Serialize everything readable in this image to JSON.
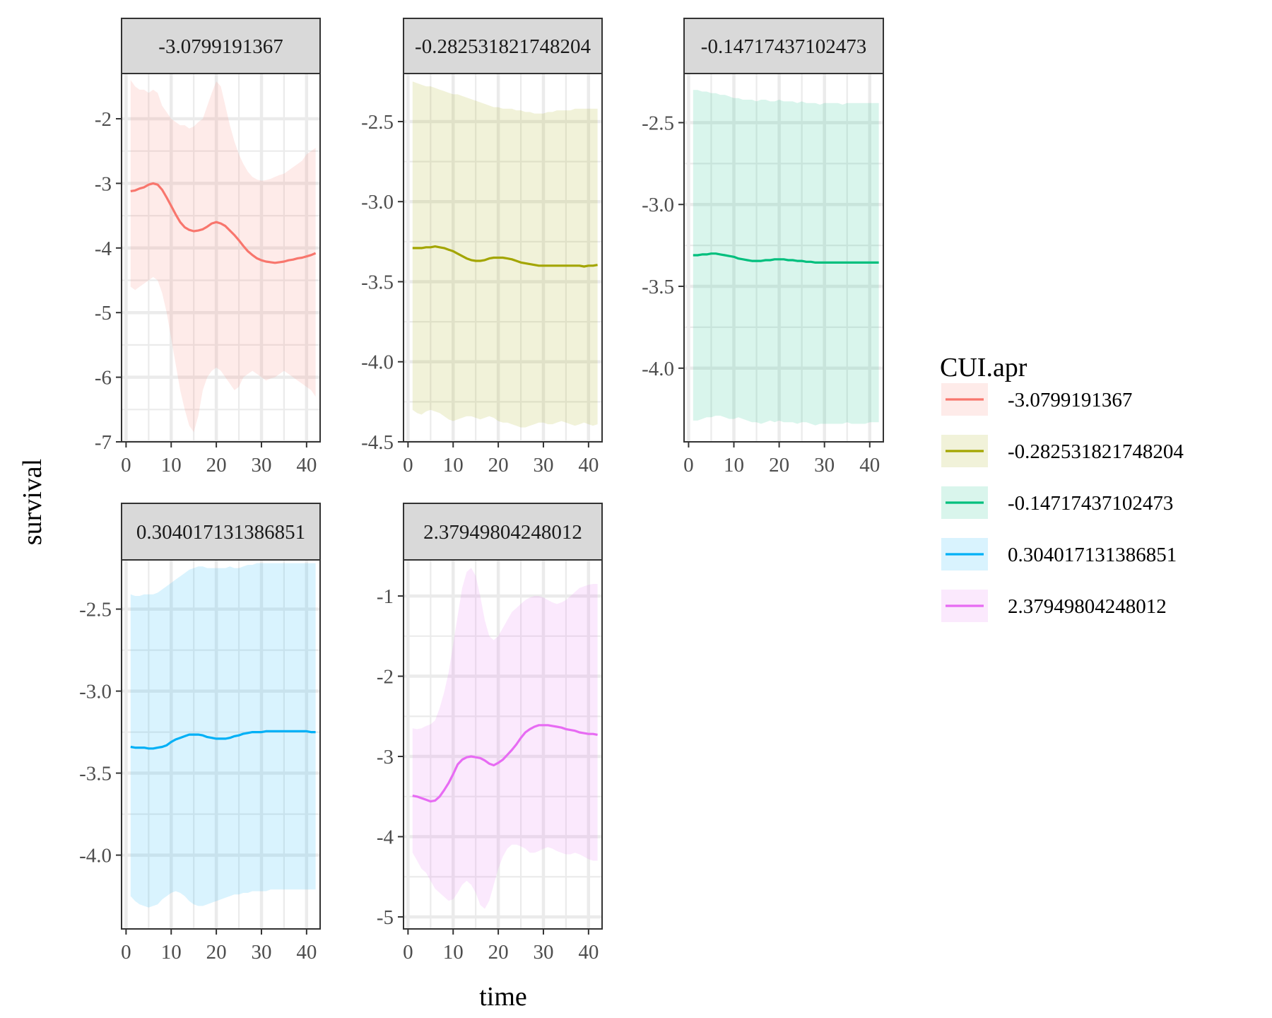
{
  "chart_data": {
    "type": "line",
    "xlabel": "time",
    "ylabel": "survival",
    "legend": {
      "title": "CUI.apr",
      "position": "right"
    },
    "grid": true,
    "ribbon_alpha": 0.15,
    "panels": [
      {
        "strip_label": "-3.0799191367",
        "color": "#F8766D",
        "xlim": [
          -1,
          43
        ],
        "ylim": [
          -7,
          -1.3
        ],
        "x_ticks": [
          0,
          10,
          20,
          30,
          40
        ],
        "y_ticks": [
          -7,
          -6,
          -5,
          -4,
          -3,
          -2
        ],
        "y_tick_labels": [
          "-7",
          "-6",
          "-5",
          "-4",
          "-3",
          "-2"
        ],
        "x": [
          1,
          2,
          3,
          4,
          5,
          6,
          7,
          8,
          9,
          10,
          11,
          12,
          13,
          14,
          15,
          16,
          17,
          18,
          19,
          20,
          21,
          22,
          23,
          24,
          25,
          26,
          27,
          28,
          29,
          30,
          31,
          32,
          33,
          34,
          35,
          36,
          37,
          38,
          39,
          40,
          41,
          42
        ],
        "y": [
          -3.12,
          -3.11,
          -3.08,
          -3.06,
          -3.02,
          -3.0,
          -3.02,
          -3.1,
          -3.22,
          -3.35,
          -3.48,
          -3.6,
          -3.68,
          -3.72,
          -3.74,
          -3.73,
          -3.71,
          -3.67,
          -3.62,
          -3.6,
          -3.62,
          -3.66,
          -3.73,
          -3.8,
          -3.88,
          -3.97,
          -4.05,
          -4.11,
          -4.16,
          -4.19,
          -4.21,
          -4.22,
          -4.23,
          -4.22,
          -4.21,
          -4.19,
          -4.18,
          -4.16,
          -4.15,
          -4.13,
          -4.11,
          -4.08
        ],
        "lower": [
          -4.6,
          -4.65,
          -4.6,
          -4.55,
          -4.5,
          -4.45,
          -4.5,
          -4.7,
          -5.0,
          -5.4,
          -5.8,
          -6.2,
          -6.5,
          -6.75,
          -6.85,
          -6.6,
          -6.2,
          -6.0,
          -5.9,
          -5.85,
          -5.9,
          -6.0,
          -6.1,
          -6.2,
          -6.15,
          -6.0,
          -5.95,
          -5.9,
          -5.95,
          -6.0,
          -6.05,
          -6.02,
          -6.0,
          -5.95,
          -5.9,
          -5.95,
          -6.0,
          -6.05,
          -6.1,
          -6.15,
          -6.2,
          -6.3
        ],
        "upper": [
          -1.4,
          -1.5,
          -1.55,
          -1.55,
          -1.6,
          -1.55,
          -1.6,
          -1.8,
          -1.9,
          -2.0,
          -2.05,
          -2.1,
          -2.1,
          -2.15,
          -2.12,
          -2.05,
          -2.0,
          -1.8,
          -1.6,
          -1.42,
          -1.5,
          -1.8,
          -2.1,
          -2.35,
          -2.55,
          -2.7,
          -2.82,
          -2.9,
          -2.94,
          -2.96,
          -2.95,
          -2.93,
          -2.9,
          -2.87,
          -2.85,
          -2.8,
          -2.75,
          -2.7,
          -2.65,
          -2.55,
          -2.5,
          -2.45
        ]
      },
      {
        "strip_label": "-0.282531821748204",
        "color": "#A3A500",
        "xlim": [
          -1,
          43
        ],
        "ylim": [
          -4.5,
          -2.2
        ],
        "x_ticks": [
          0,
          10,
          20,
          30,
          40
        ],
        "y_ticks": [
          -4.5,
          -4.0,
          -3.5,
          -3.0,
          -2.5
        ],
        "y_tick_labels": [
          "-4.5",
          "-4.0",
          "-3.5",
          "-3.0",
          "-2.5"
        ],
        "x": [
          1,
          2,
          3,
          4,
          5,
          6,
          7,
          8,
          9,
          10,
          11,
          12,
          13,
          14,
          15,
          16,
          17,
          18,
          19,
          20,
          21,
          22,
          23,
          24,
          25,
          26,
          27,
          28,
          29,
          30,
          31,
          32,
          33,
          34,
          35,
          36,
          37,
          38,
          39,
          40,
          41,
          42
        ],
        "y": [
          -3.29,
          -3.29,
          -3.29,
          -3.285,
          -3.285,
          -3.28,
          -3.285,
          -3.29,
          -3.3,
          -3.31,
          -3.325,
          -3.34,
          -3.355,
          -3.365,
          -3.37,
          -3.37,
          -3.365,
          -3.355,
          -3.35,
          -3.35,
          -3.35,
          -3.355,
          -3.36,
          -3.37,
          -3.38,
          -3.385,
          -3.39,
          -3.395,
          -3.4,
          -3.4,
          -3.4,
          -3.4,
          -3.4,
          -3.4,
          -3.4,
          -3.4,
          -3.4,
          -3.4,
          -3.405,
          -3.4,
          -3.4,
          -3.395
        ],
        "lower": [
          -4.3,
          -4.32,
          -4.33,
          -4.31,
          -4.3,
          -4.31,
          -4.32,
          -4.34,
          -4.36,
          -4.37,
          -4.36,
          -4.35,
          -4.34,
          -4.34,
          -4.35,
          -4.36,
          -4.35,
          -4.34,
          -4.35,
          -4.37,
          -4.38,
          -4.38,
          -4.39,
          -4.4,
          -4.41,
          -4.41,
          -4.4,
          -4.39,
          -4.38,
          -4.38,
          -4.39,
          -4.39,
          -4.38,
          -4.37,
          -4.38,
          -4.39,
          -4.4,
          -4.39,
          -4.38,
          -4.39,
          -4.4,
          -4.39
        ],
        "upper": [
          -2.25,
          -2.26,
          -2.27,
          -2.28,
          -2.28,
          -2.29,
          -2.3,
          -2.31,
          -2.32,
          -2.33,
          -2.33,
          -2.34,
          -2.35,
          -2.36,
          -2.37,
          -2.38,
          -2.39,
          -2.4,
          -2.41,
          -2.41,
          -2.42,
          -2.42,
          -2.42,
          -2.43,
          -2.43,
          -2.44,
          -2.44,
          -2.45,
          -2.45,
          -2.45,
          -2.44,
          -2.44,
          -2.43,
          -2.43,
          -2.43,
          -2.43,
          -2.42,
          -2.42,
          -2.42,
          -2.42,
          -2.42,
          -2.42
        ]
      },
      {
        "strip_label": "-0.14717437102473",
        "color": "#00BF7D",
        "xlim": [
          -1,
          43
        ],
        "ylim": [
          -4.45,
          -2.2
        ],
        "x_ticks": [
          0,
          10,
          20,
          30,
          40
        ],
        "y_ticks": [
          -4.0,
          -3.5,
          -3.0,
          -2.5
        ],
        "y_tick_labels": [
          "-4.0",
          "-3.5",
          "-3.0",
          "-2.5"
        ],
        "x": [
          1,
          2,
          3,
          4,
          5,
          6,
          7,
          8,
          9,
          10,
          11,
          12,
          13,
          14,
          15,
          16,
          17,
          18,
          19,
          20,
          21,
          22,
          23,
          24,
          25,
          26,
          27,
          28,
          29,
          30,
          31,
          32,
          33,
          34,
          35,
          36,
          37,
          38,
          39,
          40,
          41,
          42
        ],
        "y": [
          -3.31,
          -3.31,
          -3.305,
          -3.305,
          -3.3,
          -3.3,
          -3.305,
          -3.31,
          -3.315,
          -3.32,
          -3.33,
          -3.335,
          -3.34,
          -3.345,
          -3.345,
          -3.345,
          -3.34,
          -3.34,
          -3.335,
          -3.335,
          -3.335,
          -3.34,
          -3.34,
          -3.345,
          -3.345,
          -3.35,
          -3.35,
          -3.355,
          -3.355,
          -3.355,
          -3.355,
          -3.355,
          -3.355,
          -3.355,
          -3.355,
          -3.355,
          -3.355,
          -3.355,
          -3.355,
          -3.355,
          -3.355,
          -3.355
        ],
        "lower": [
          -4.32,
          -4.32,
          -4.31,
          -4.3,
          -4.3,
          -4.29,
          -4.29,
          -4.3,
          -4.31,
          -4.31,
          -4.3,
          -4.31,
          -4.32,
          -4.33,
          -4.33,
          -4.34,
          -4.33,
          -4.32,
          -4.33,
          -4.32,
          -4.33,
          -4.33,
          -4.33,
          -4.34,
          -4.33,
          -4.33,
          -4.34,
          -4.35,
          -4.34,
          -4.34,
          -4.34,
          -4.34,
          -4.34,
          -4.34,
          -4.33,
          -4.34,
          -4.34,
          -4.34,
          -4.34,
          -4.33,
          -4.33,
          -4.33
        ],
        "upper": [
          -2.3,
          -2.3,
          -2.31,
          -2.31,
          -2.32,
          -2.32,
          -2.33,
          -2.33,
          -2.34,
          -2.35,
          -2.35,
          -2.36,
          -2.36,
          -2.36,
          -2.37,
          -2.36,
          -2.36,
          -2.37,
          -2.37,
          -2.36,
          -2.37,
          -2.37,
          -2.37,
          -2.38,
          -2.37,
          -2.38,
          -2.38,
          -2.38,
          -2.39,
          -2.38,
          -2.38,
          -2.38,
          -2.38,
          -2.39,
          -2.38,
          -2.38,
          -2.38,
          -2.38,
          -2.38,
          -2.38,
          -2.38,
          -2.38
        ]
      },
      {
        "strip_label": "0.304017131386851",
        "color": "#00B0F6",
        "xlim": [
          -1,
          43
        ],
        "ylim": [
          -4.45,
          -2.2
        ],
        "x_ticks": [
          0,
          10,
          20,
          30,
          40
        ],
        "y_ticks": [
          -4.0,
          -3.5,
          -3.0,
          -2.5
        ],
        "y_tick_labels": [
          "-4.0",
          "-3.5",
          "-3.0",
          "-2.5"
        ],
        "x": [
          1,
          2,
          3,
          4,
          5,
          6,
          7,
          8,
          9,
          10,
          11,
          12,
          13,
          14,
          15,
          16,
          17,
          18,
          19,
          20,
          21,
          22,
          23,
          24,
          25,
          26,
          27,
          28,
          29,
          30,
          31,
          32,
          33,
          34,
          35,
          36,
          37,
          38,
          39,
          40,
          41,
          42
        ],
        "y": [
          -3.34,
          -3.345,
          -3.345,
          -3.345,
          -3.35,
          -3.35,
          -3.345,
          -3.34,
          -3.33,
          -3.31,
          -3.295,
          -3.285,
          -3.275,
          -3.265,
          -3.265,
          -3.265,
          -3.27,
          -3.28,
          -3.285,
          -3.29,
          -3.29,
          -3.29,
          -3.285,
          -3.275,
          -3.27,
          -3.26,
          -3.255,
          -3.25,
          -3.25,
          -3.25,
          -3.245,
          -3.245,
          -3.245,
          -3.245,
          -3.245,
          -3.245,
          -3.245,
          -3.245,
          -3.245,
          -3.245,
          -3.25,
          -3.25
        ],
        "lower": [
          -4.25,
          -4.28,
          -4.3,
          -4.31,
          -4.32,
          -4.31,
          -4.3,
          -4.27,
          -4.25,
          -4.23,
          -4.22,
          -4.23,
          -4.25,
          -4.28,
          -4.3,
          -4.31,
          -4.31,
          -4.3,
          -4.29,
          -4.28,
          -4.27,
          -4.26,
          -4.25,
          -4.24,
          -4.24,
          -4.23,
          -4.23,
          -4.22,
          -4.22,
          -4.22,
          -4.22,
          -4.21,
          -4.21,
          -4.21,
          -4.21,
          -4.21,
          -4.21,
          -4.21,
          -4.21,
          -4.21,
          -4.21,
          -4.21
        ],
        "upper": [
          -2.41,
          -2.42,
          -2.42,
          -2.41,
          -2.41,
          -2.41,
          -2.4,
          -2.38,
          -2.36,
          -2.34,
          -2.32,
          -2.3,
          -2.28,
          -2.26,
          -2.25,
          -2.24,
          -2.24,
          -2.25,
          -2.25,
          -2.25,
          -2.25,
          -2.25,
          -2.24,
          -2.25,
          -2.25,
          -2.24,
          -2.23,
          -2.23,
          -2.22,
          -2.22,
          -2.22,
          -2.22,
          -2.22,
          -2.22,
          -2.22,
          -2.22,
          -2.22,
          -2.22,
          -2.22,
          -2.22,
          -2.22,
          -2.22
        ]
      },
      {
        "strip_label": "2.37949804248012",
        "color": "#E76BF3",
        "xlim": [
          -1,
          43
        ],
        "ylim": [
          -5.15,
          -0.55
        ],
        "x_ticks": [
          0,
          10,
          20,
          30,
          40
        ],
        "y_ticks": [
          -5,
          -4,
          -3,
          -2,
          -1
        ],
        "y_tick_labels": [
          "-5",
          "-4",
          "-3",
          "-2",
          "-1"
        ],
        "x": [
          1,
          2,
          3,
          4,
          5,
          6,
          7,
          8,
          9,
          10,
          11,
          12,
          13,
          14,
          15,
          16,
          17,
          18,
          19,
          20,
          21,
          22,
          23,
          24,
          25,
          26,
          27,
          28,
          29,
          30,
          31,
          32,
          33,
          34,
          35,
          36,
          37,
          38,
          39,
          40,
          41,
          42
        ],
        "y": [
          -3.49,
          -3.5,
          -3.52,
          -3.54,
          -3.56,
          -3.55,
          -3.5,
          -3.42,
          -3.33,
          -3.22,
          -3.1,
          -3.04,
          -3.01,
          -3.0,
          -3.01,
          -3.02,
          -3.05,
          -3.09,
          -3.11,
          -3.08,
          -3.04,
          -2.98,
          -2.92,
          -2.85,
          -2.77,
          -2.7,
          -2.66,
          -2.63,
          -2.61,
          -2.61,
          -2.61,
          -2.62,
          -2.63,
          -2.64,
          -2.66,
          -2.67,
          -2.68,
          -2.7,
          -2.71,
          -2.72,
          -2.72,
          -2.73
        ],
        "lower": [
          -4.2,
          -4.3,
          -4.4,
          -4.45,
          -4.55,
          -4.65,
          -4.7,
          -4.75,
          -4.8,
          -4.78,
          -4.7,
          -4.6,
          -4.55,
          -4.6,
          -4.7,
          -4.85,
          -4.9,
          -4.8,
          -4.6,
          -4.4,
          -4.25,
          -4.15,
          -4.1,
          -4.1,
          -4.12,
          -4.15,
          -4.2,
          -4.2,
          -4.18,
          -4.15,
          -4.13,
          -4.15,
          -4.18,
          -4.2,
          -4.22,
          -4.22,
          -4.2,
          -4.22,
          -4.25,
          -4.28,
          -4.3,
          -4.3
        ],
        "upper": [
          -2.65,
          -2.66,
          -2.65,
          -2.62,
          -2.6,
          -2.55,
          -2.4,
          -2.2,
          -1.95,
          -1.6,
          -1.25,
          -0.9,
          -0.7,
          -0.65,
          -0.75,
          -1.0,
          -1.3,
          -1.5,
          -1.55,
          -1.5,
          -1.4,
          -1.3,
          -1.2,
          -1.15,
          -1.1,
          -1.05,
          -1.02,
          -1.0,
          -1.0,
          -1.02,
          -1.05,
          -1.08,
          -1.1,
          -1.08,
          -1.05,
          -1.0,
          -0.95,
          -0.9,
          -0.88,
          -0.86,
          -0.85,
          -0.85
        ]
      }
    ],
    "legend_entries": [
      {
        "label": "-3.0799191367",
        "color": "#F8766D"
      },
      {
        "label": "-0.282531821748204",
        "color": "#A3A500"
      },
      {
        "label": "-0.14717437102473",
        "color": "#00BF7D"
      },
      {
        "label": "0.304017131386851",
        "color": "#00B0F6"
      },
      {
        "label": "2.37949804248012",
        "color": "#E76BF3"
      }
    ]
  }
}
